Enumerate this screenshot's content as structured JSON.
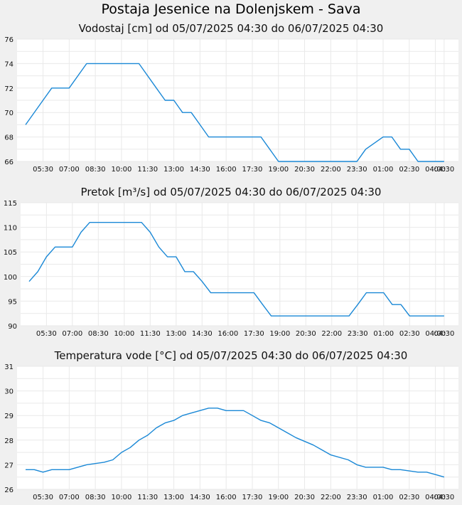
{
  "page": {
    "title": "Postaja Jesenice na Dolenjskem - Sava"
  },
  "colors": {
    "line": "#1a88d6",
    "grid": "#e9e9e9",
    "plot_bg": "#ffffff",
    "page_bg": "#f0f0f0"
  },
  "chart_data": [
    {
      "type": "line",
      "title": "Vodostaj [cm] od 05/07/2025 04:30 do 06/07/2025 04:30",
      "xlabel": "",
      "ylabel": "",
      "ylim": [
        66,
        76
      ],
      "yticks": [
        66,
        68,
        70,
        72,
        74,
        76
      ],
      "xticks": [
        "05:30",
        "07:00",
        "08:30",
        "10:00",
        "11:30",
        "13:00",
        "14:30",
        "16:00",
        "17:30",
        "19:00",
        "20:30",
        "22:00",
        "23:30",
        "01:00",
        "02:30",
        "04:00",
        "04:30"
      ],
      "grid": true,
      "series": [
        {
          "x": [
            "04:30",
            "05:30",
            "06:00",
            "07:00",
            "08:00",
            "09:00",
            "10:00",
            "11:00",
            "12:00",
            "12:30",
            "13:00",
            "13:30",
            "14:00",
            "14:30",
            "15:00",
            "16:00",
            "17:00",
            "17:30",
            "18:00",
            "18:30",
            "19:00",
            "20:00",
            "21:00",
            "22:00",
            "22:30",
            "23:00",
            "23:30",
            "00:00",
            "01:00",
            "01:30",
            "02:00",
            "02:30",
            "03:00",
            "04:00",
            "04:30"
          ],
          "values": [
            69,
            71,
            72,
            72,
            74,
            74,
            74,
            74,
            72,
            71,
            71,
            70,
            70,
            69,
            68,
            68,
            68,
            68,
            68,
            67,
            66,
            66,
            66,
            66,
            66,
            66,
            66,
            67,
            68,
            68,
            67,
            67,
            66,
            66,
            66
          ]
        }
      ]
    },
    {
      "type": "line",
      "title": "Pretok [m³/s] od 05/07/2025 04:30 do 06/07/2025 04:30",
      "xlabel": "",
      "ylabel": "",
      "ylim": [
        90,
        115
      ],
      "yticks": [
        90,
        95,
        100,
        105,
        110,
        115
      ],
      "xticks": [
        "05:30",
        "07:00",
        "08:30",
        "10:00",
        "11:30",
        "13:00",
        "14:30",
        "16:00",
        "17:30",
        "19:00",
        "20:30",
        "22:00",
        "23:30",
        "01:00",
        "02:30",
        "04:00",
        "04:30"
      ],
      "grid": true,
      "series": [
        {
          "x": [
            "04:30",
            "05:00",
            "05:30",
            "06:00",
            "07:00",
            "07:30",
            "08:00",
            "08:30",
            "09:00",
            "10:00",
            "11:00",
            "11:30",
            "12:00",
            "12:30",
            "13:00",
            "13:30",
            "14:00",
            "14:30",
            "15:00",
            "16:00",
            "17:00",
            "17:30",
            "18:00",
            "18:30",
            "19:00",
            "20:00",
            "21:00",
            "22:00",
            "22:30",
            "23:00",
            "23:30",
            "00:00",
            "01:00",
            "01:30",
            "02:00",
            "02:30",
            "03:00",
            "04:00",
            "04:30"
          ],
          "values": [
            99,
            101,
            104,
            106,
            106,
            109,
            111,
            111,
            111,
            111,
            111,
            109,
            106,
            104,
            104,
            101,
            101,
            99,
            96.7,
            96.7,
            96.7,
            96.7,
            94.3,
            92,
            92,
            92,
            92,
            92,
            92,
            92,
            94.3,
            96.7,
            96.7,
            94.3,
            94.3,
            92,
            92,
            92,
            92
          ]
        }
      ]
    },
    {
      "type": "line",
      "title": "Temperatura vode [°C] od 05/07/2025 04:30 do 06/07/2025 04:30",
      "xlabel": "",
      "ylabel": "",
      "ylim": [
        26,
        31
      ],
      "yticks": [
        26,
        27,
        28,
        29,
        30,
        31
      ],
      "xticks": [
        "05:30",
        "07:00",
        "08:30",
        "10:00",
        "11:30",
        "13:00",
        "14:30",
        "16:00",
        "17:30",
        "19:00",
        "20:30",
        "22:00",
        "23:30",
        "01:00",
        "02:30",
        "04:00",
        "04:30"
      ],
      "grid": true,
      "series": [
        {
          "x": [
            "04:30",
            "05:00",
            "05:30",
            "06:00",
            "07:00",
            "08:00",
            "09:00",
            "09:30",
            "10:00",
            "10:30",
            "11:00",
            "11:30",
            "12:00",
            "12:30",
            "13:00",
            "13:30",
            "14:00",
            "15:00",
            "15:30",
            "16:00",
            "17:00",
            "17:30",
            "18:00",
            "18:30",
            "19:00",
            "19:30",
            "20:00",
            "21:00",
            "21:30",
            "22:00",
            "23:00",
            "23:30",
            "00:00",
            "01:00",
            "01:30",
            "02:00",
            "03:00",
            "03:30",
            "04:00",
            "04:30"
          ],
          "values": [
            26.8,
            26.8,
            26.7,
            26.8,
            26.8,
            27,
            27.1,
            27.2,
            27.5,
            27.7,
            28,
            28.2,
            28.5,
            28.7,
            28.8,
            29,
            29.1,
            29.3,
            29.3,
            29.2,
            29.2,
            29,
            28.8,
            28.7,
            28.5,
            28.3,
            28.1,
            27.8,
            27.6,
            27.4,
            27.2,
            27,
            26.9,
            26.9,
            26.8,
            26.8,
            26.7,
            26.7,
            26.6,
            26.5
          ]
        }
      ]
    }
  ]
}
